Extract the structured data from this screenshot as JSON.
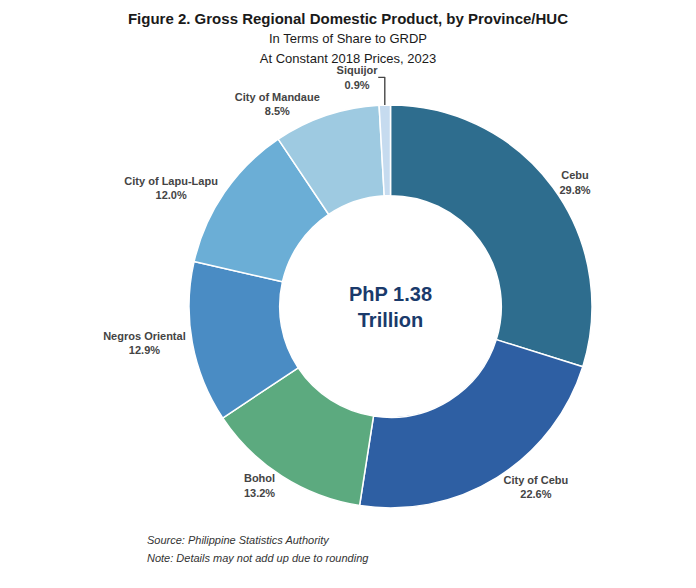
{
  "chart_data": {
    "type": "pie",
    "title": "Figure 2. Gross Regional Domestic Product, by Province/HUC",
    "subtitle": [
      "In Terms of Share to GRDP",
      "At Constant 2018 Prices, 2023"
    ],
    "categories": [
      "Cebu",
      "City of Cebu",
      "Bohol",
      "Negros Oriental",
      "City of Lapu-Lapu",
      "City of Mandaue",
      "Siquijor"
    ],
    "values": [
      29.8,
      22.6,
      13.2,
      12.9,
      12.0,
      8.5,
      0.9
    ],
    "value_labels": [
      "29.8%",
      "22.6%",
      "13.2%",
      "12.9%",
      "12.0%",
      "8.5%",
      "0.9%"
    ],
    "colors": [
      "#2e6d8e",
      "#2e5fa3",
      "#5caa7f",
      "#4a8cc4",
      "#6baed6",
      "#9ecae1",
      "#c6dbef"
    ],
    "data_labels": true,
    "center_text": [
      "PhP 1.38",
      "Trillion"
    ],
    "footnotes": [
      "Source: Philippine Statistics Authority",
      "Note: Details may not add up due to rounding"
    ]
  }
}
